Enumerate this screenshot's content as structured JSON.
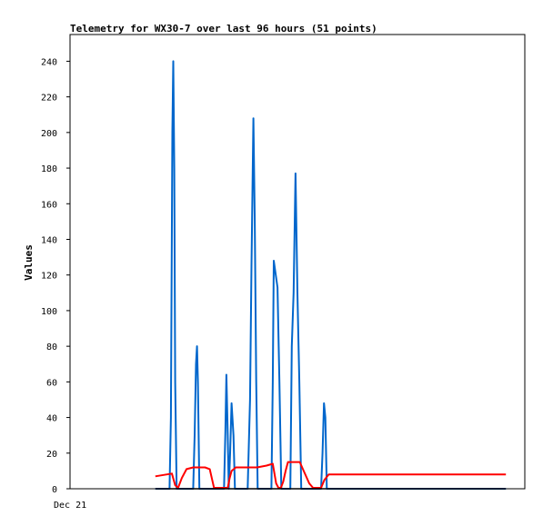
{
  "chart_data": {
    "type": "line",
    "title": "Telemetry for WX30-7 over last 96 hours (51 points)",
    "xlabel": "",
    "ylabel": "Values",
    "x_tick_labels": [
      "Dec 21"
    ],
    "ylim": [
      0,
      255
    ],
    "y_ticks": [
      0,
      20,
      40,
      60,
      80,
      100,
      120,
      140,
      160,
      180,
      200,
      220,
      240
    ],
    "grid": false,
    "legend": "none",
    "x_unit": "hours",
    "xlim": [
      0,
      96
    ],
    "series": [
      {
        "color": "#0066cc",
        "points": [
          [
            18.0,
            0
          ],
          [
            21.0,
            0
          ],
          [
            21.3,
            40
          ],
          [
            21.6,
            200
          ],
          [
            21.8,
            240
          ],
          [
            22.0,
            180
          ],
          [
            22.2,
            60
          ],
          [
            22.5,
            0
          ],
          [
            26.0,
            0
          ],
          [
            26.3,
            30
          ],
          [
            26.6,
            70
          ],
          [
            26.8,
            80
          ],
          [
            27.0,
            60
          ],
          [
            27.3,
            0
          ],
          [
            32.5,
            0
          ],
          [
            32.8,
            32
          ],
          [
            33.0,
            64
          ],
          [
            33.3,
            30
          ],
          [
            33.5,
            0
          ],
          [
            33.8,
            20
          ],
          [
            34.1,
            48
          ],
          [
            34.5,
            30
          ],
          [
            34.8,
            0
          ],
          [
            37.5,
            0
          ],
          [
            38.0,
            50
          ],
          [
            38.3,
            125
          ],
          [
            38.7,
            208
          ],
          [
            39.0,
            150
          ],
          [
            39.3,
            60
          ],
          [
            39.6,
            0
          ],
          [
            42.5,
            0
          ],
          [
            42.8,
            60
          ],
          [
            43.0,
            128
          ],
          [
            43.8,
            113
          ],
          [
            44.2,
            60
          ],
          [
            44.6,
            0
          ],
          [
            46.5,
            0
          ],
          [
            46.8,
            80
          ],
          [
            47.2,
            110
          ],
          [
            47.6,
            177
          ],
          [
            48.0,
            110
          ],
          [
            48.4,
            60
          ],
          [
            48.8,
            0
          ],
          [
            53.0,
            0
          ],
          [
            53.3,
            20
          ],
          [
            53.6,
            48
          ],
          [
            53.9,
            40
          ],
          [
            54.2,
            0
          ],
          [
            92.0,
            0
          ]
        ]
      },
      {
        "color": "#ff0000",
        "points": [
          [
            18.0,
            7
          ],
          [
            21.5,
            8.5
          ],
          [
            22.2,
            2
          ],
          [
            22.8,
            0.5
          ],
          [
            23.6,
            6
          ],
          [
            24.6,
            11
          ],
          [
            26.0,
            12
          ],
          [
            28.5,
            12
          ],
          [
            29.5,
            11
          ],
          [
            30.0,
            5
          ],
          [
            30.4,
            0.5
          ],
          [
            33.3,
            0.5
          ],
          [
            33.7,
            6
          ],
          [
            34.1,
            10
          ],
          [
            35.0,
            12
          ],
          [
            39.5,
            12
          ],
          [
            41.5,
            13
          ],
          [
            42.8,
            14
          ],
          [
            43.5,
            3
          ],
          [
            44.0,
            0.5
          ],
          [
            44.5,
            0.5
          ],
          [
            45.0,
            4
          ],
          [
            45.5,
            10
          ],
          [
            46.0,
            15
          ],
          [
            48.5,
            15
          ],
          [
            49.5,
            9
          ],
          [
            50.5,
            3
          ],
          [
            51.3,
            0.5
          ],
          [
            53.0,
            0.5
          ],
          [
            53.7,
            5
          ],
          [
            54.6,
            8
          ],
          [
            92.0,
            8
          ]
        ]
      },
      {
        "color": "#000000",
        "points": [
          [
            18.0,
            0
          ],
          [
            92.0,
            0
          ]
        ]
      }
    ]
  }
}
